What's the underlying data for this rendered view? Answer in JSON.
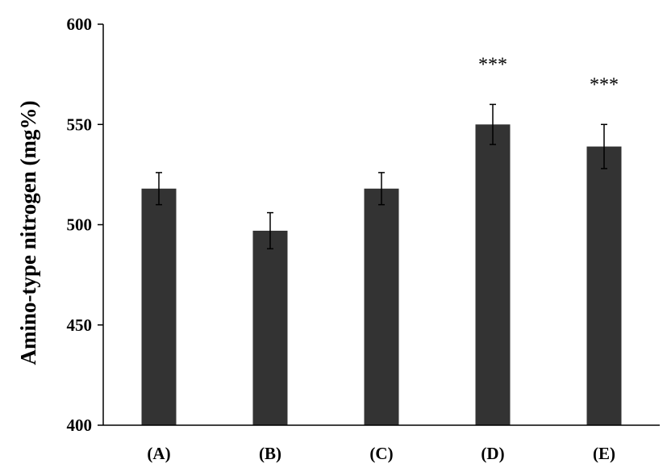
{
  "chart_data": {
    "type": "bar",
    "categories": [
      "(A)",
      "(B)",
      "(C)",
      "(D)",
      "(E)"
    ],
    "values": [
      518,
      497,
      518,
      550,
      539
    ],
    "errors": [
      8,
      9,
      8,
      10,
      11
    ],
    "annotations": [
      "",
      "",
      "",
      "***",
      "***"
    ],
    "title": "",
    "xlabel": "",
    "ylabel": "Amino-type nitrogen (mg%)",
    "ylim": [
      400,
      600
    ],
    "yticks": [
      400,
      450,
      500,
      550,
      600
    ],
    "grid": false,
    "bar_color": "#333333"
  }
}
